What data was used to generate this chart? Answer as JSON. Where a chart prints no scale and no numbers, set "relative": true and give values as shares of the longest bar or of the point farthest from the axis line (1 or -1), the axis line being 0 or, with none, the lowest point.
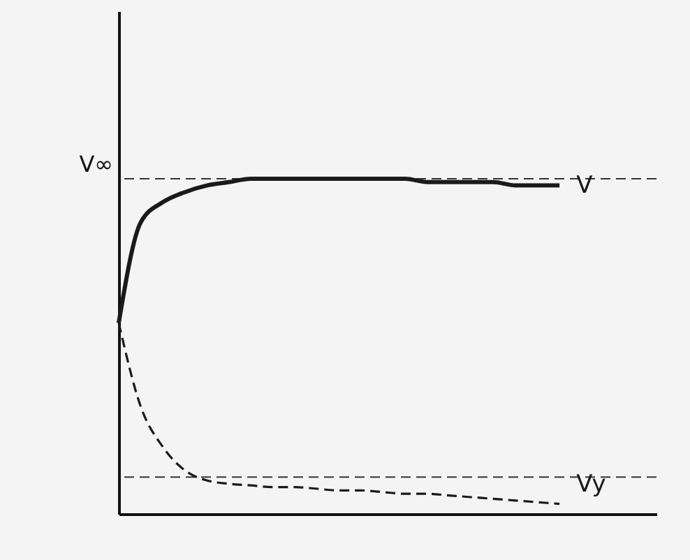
{
  "chart_data": {
    "type": "line",
    "relative": true,
    "categories": [
      null,
      null,
      null,
      null,
      null,
      null,
      null,
      null,
      null,
      null,
      null,
      null,
      null,
      null,
      null,
      null,
      null,
      null,
      null,
      null,
      null
    ],
    "series": [
      {
        "name": "V",
        "color": "#1a1a1a",
        "line_style": "solid",
        "values": [
          0.57,
          0.87,
          0.93,
          0.96,
          0.98,
          0.99,
          1,
          1,
          1,
          1,
          1,
          1,
          1,
          1,
          0.99,
          0.99,
          0.99,
          0.99,
          0.98,
          0.98,
          0.98
        ]
      },
      {
        "name": "Vy",
        "color": "#1a1a1a",
        "line_style": "dashed",
        "values": [
          0.57,
          0.32,
          0.2,
          0.13,
          0.1,
          0.09,
          0.085,
          0.08,
          0.08,
          0.075,
          0.07,
          0.07,
          0.065,
          0.06,
          0.06,
          0.055,
          0.05,
          0.045,
          0.04,
          0.035,
          0.03
        ]
      }
    ],
    "ref_lines": [
      {
        "axis": "y",
        "value": 1,
        "label": "V∞",
        "line_style": "dashed"
      },
      {
        "axis": "y",
        "value": 0.11,
        "label": null,
        "line_style": "dashed"
      }
    ]
  }
}
